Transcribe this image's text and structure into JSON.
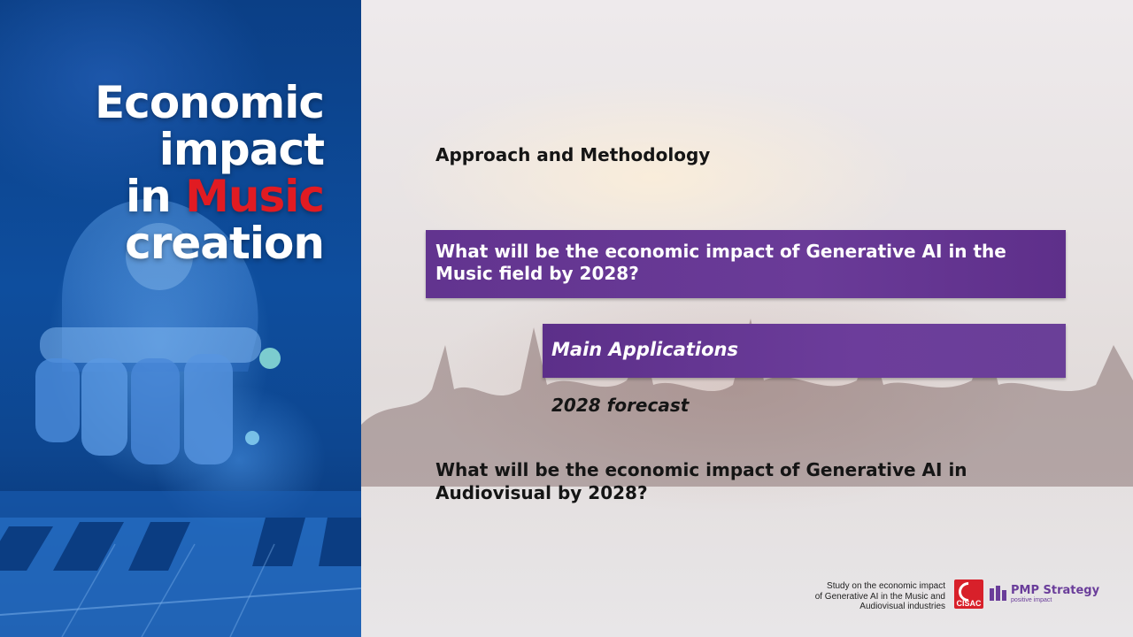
{
  "title": {
    "line1": "Economic",
    "line2": "impact",
    "line3_prefix": "in ",
    "line3_accent": "Music",
    "line4": "creation"
  },
  "content": {
    "approach": "Approach and Methodology",
    "question_music": "What will be the economic impact of Generative AI in the Music field by 2028?",
    "main_applications": "Main Applications",
    "forecast": "2028 forecast",
    "question_audiovisual": "What will be the economic impact of Generative AI in Audiovisual by 2028?"
  },
  "footer": {
    "study_line1": "Study on the economic impact",
    "study_line2": "of Generative AI in the Music and",
    "study_line3": "Audiovisual industries",
    "cisac_label": "CISAC",
    "pmp_name": "PMP Strategy",
    "pmp_tagline": "positive impact"
  },
  "colors": {
    "purple": "#6a3b98",
    "accent_red": "#e11b22",
    "left_blue": "#0e4e9e"
  },
  "icons": {
    "hand_image": "robot-hand-icon",
    "piano_image": "piano-keys-icon",
    "cisac": "cisac-logo-icon",
    "pmp": "pmp-logo-icon"
  }
}
